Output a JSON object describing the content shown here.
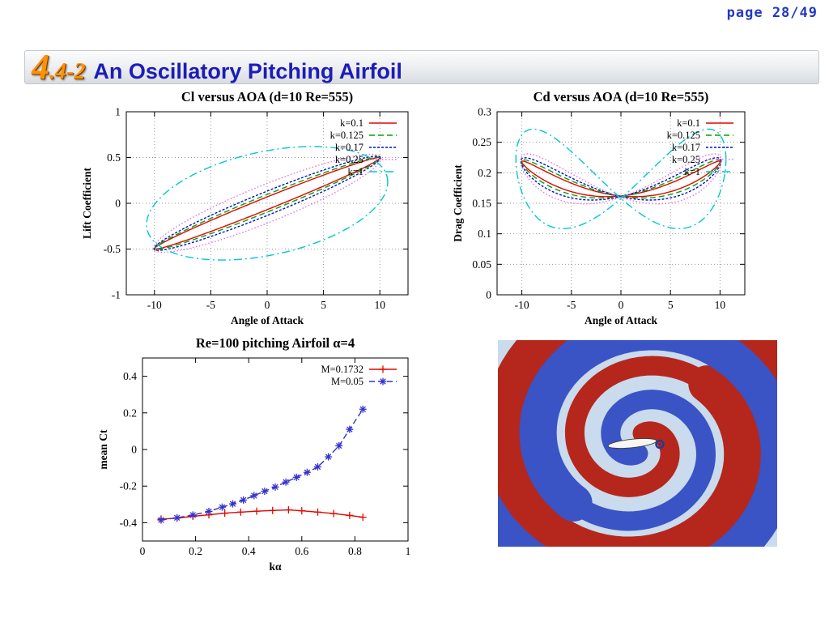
{
  "page_label": "page 28/49",
  "title_bar": {
    "section_big": "4",
    "section_rest": ".4-2",
    "title": "An Oscillatory Pitching Airfoil"
  },
  "colors": {
    "page_label_blue": "#2339c0",
    "title_navy": "#1c1cb8",
    "section_orange": "#ff9100"
  },
  "chart_data": [
    {
      "id": "cl_vs_aoa",
      "type": "line",
      "title": "Cl versus AOA (d=10 Re=555)",
      "xlabel": "Angle of Attack",
      "ylabel": "Lift Coefficient",
      "xlim": [
        -12.5,
        12.5
      ],
      "ylim": [
        -1,
        1
      ],
      "xticks": [
        -10,
        -5,
        0,
        5,
        10
      ],
      "yticks": [
        -1,
        -0.5,
        0,
        0.5,
        1
      ],
      "grid": true,
      "legend_position": "top-right",
      "note": "hysteresis loops: Cl swings -0.5..0.5 while AOA swings -10..10; loop width grows with reduced frequency k",
      "series": [
        {
          "label": "k=0.1",
          "color": "#e10600",
          "dash": "solid",
          "loop": {
            "kind": "ellipse",
            "x_amp": 10,
            "y_amp": 0.5,
            "phase_deg": 8
          }
        },
        {
          "label": "k=0.125",
          "color": "#00a400",
          "dash": "dashed",
          "loop": {
            "kind": "ellipse",
            "x_amp": 10,
            "y_amp": 0.505,
            "phase_deg": 11
          }
        },
        {
          "label": "k=0.17",
          "color": "#0013c4",
          "dash": "dense-dash",
          "loop": {
            "kind": "ellipse",
            "x_amp": 10.05,
            "y_amp": 0.515,
            "phase_deg": 15
          }
        },
        {
          "label": "k=0.25",
          "color": "#e86ce8",
          "dash": "dotted",
          "loop": {
            "kind": "ellipse",
            "x_amp": 10.1,
            "y_amp": 0.535,
            "phase_deg": 24
          }
        },
        {
          "label": "k=1",
          "color": "#00c8d2",
          "dash": "dash-dot",
          "loop": {
            "kind": "ellipse",
            "x_amp": 10.7,
            "y_amp": 0.62,
            "phase_deg": 68
          }
        }
      ]
    },
    {
      "id": "cd_vs_aoa",
      "type": "line",
      "title": "Cd versus AOA (d=10 Re=555)",
      "xlabel": "Angle of Attack",
      "ylabel": "Drag Coefficient",
      "xlim": [
        -12.5,
        12.5
      ],
      "ylim": [
        0,
        0.3
      ],
      "xticks": [
        -10,
        -5,
        0,
        5,
        10
      ],
      "yticks": [
        0,
        0.05,
        0.1,
        0.15,
        0.2,
        0.25,
        0.3
      ],
      "grid": true,
      "legend_position": "top-right",
      "note": "figure-eight loops: Cd ~0.22 at AOA=±10, branches cross near (0, 0.16); k=1 loop widest (~0.12..0.27)",
      "series": [
        {
          "label": "k=0.1",
          "color": "#e10600",
          "dash": "solid",
          "loop": {
            "kind": "fig8",
            "x_amp": 10,
            "mean": 0.19,
            "cos2": 0.028,
            "sin2": 0.008
          }
        },
        {
          "label": "k=0.125",
          "color": "#00a400",
          "dash": "dashed",
          "loop": {
            "kind": "fig8",
            "x_amp": 10.05,
            "mean": 0.19,
            "cos2": 0.0285,
            "sin2": 0.013
          }
        },
        {
          "label": "k=0.17",
          "color": "#0013c4",
          "dash": "dense-dash",
          "loop": {
            "kind": "fig8",
            "x_amp": 10.1,
            "mean": 0.19,
            "cos2": 0.029,
            "sin2": 0.019
          }
        },
        {
          "label": "k=0.25",
          "color": "#e86ce8",
          "dash": "dotted",
          "loop": {
            "kind": "fig8",
            "x_amp": 10.15,
            "mean": 0.19,
            "cos2": 0.03,
            "sin2": 0.028
          }
        },
        {
          "label": "k=1",
          "color": "#00c8d2",
          "dash": "dash-dot",
          "loop": {
            "kind": "fig8",
            "x_amp": 10.6,
            "mean": 0.19,
            "cos2": 0.032,
            "sin2": 0.075
          }
        }
      ]
    },
    {
      "id": "mean_ct",
      "type": "line",
      "title": "Re=100 pitching Airfoil α=4",
      "xlabel": "kα",
      "ylabel": "mean Ct",
      "xlim": [
        0,
        1
      ],
      "ylim": [
        -0.5,
        0.5
      ],
      "xticks": [
        0,
        0.2,
        0.4,
        0.6,
        0.8,
        1
      ],
      "yticks": [
        -0.4,
        -0.2,
        0,
        0.2,
        0.4
      ],
      "grid": false,
      "legend_position": "top-right",
      "series": [
        {
          "label": "M=0.1732",
          "color": "#e10600",
          "dash": "solid",
          "marker": "plus",
          "points": [
            [
              0.07,
              -0.38
            ],
            [
              0.13,
              -0.375
            ],
            [
              0.19,
              -0.365
            ],
            [
              0.25,
              -0.357
            ],
            [
              0.31,
              -0.348
            ],
            [
              0.37,
              -0.342
            ],
            [
              0.43,
              -0.337
            ],
            [
              0.49,
              -0.333
            ],
            [
              0.55,
              -0.33
            ],
            [
              0.6,
              -0.335
            ],
            [
              0.66,
              -0.342
            ],
            [
              0.72,
              -0.35
            ],
            [
              0.78,
              -0.36
            ],
            [
              0.83,
              -0.37
            ]
          ]
        },
        {
          "label": "M=0.05",
          "color": "#3333cc",
          "dash": "dashed",
          "marker": "asterisk",
          "points": [
            [
              0.07,
              -0.385
            ],
            [
              0.13,
              -0.373
            ],
            [
              0.19,
              -0.358
            ],
            [
              0.25,
              -0.338
            ],
            [
              0.3,
              -0.315
            ],
            [
              0.34,
              -0.297
            ],
            [
              0.38,
              -0.276
            ],
            [
              0.42,
              -0.252
            ],
            [
              0.46,
              -0.228
            ],
            [
              0.5,
              -0.205
            ],
            [
              0.54,
              -0.178
            ],
            [
              0.58,
              -0.152
            ],
            [
              0.62,
              -0.125
            ],
            [
              0.66,
              -0.095
            ],
            [
              0.7,
              -0.04
            ],
            [
              0.74,
              0.02
            ],
            [
              0.78,
              0.11
            ],
            [
              0.83,
              0.22
            ]
          ]
        }
      ]
    }
  ],
  "flow_field": {
    "description": "acoustic pressure spiral wave field radiated by the pitching airfoil",
    "colors": {
      "background": "#c9dbec",
      "positive": "#b5271d",
      "negative": "#3a53c5",
      "airfoil": "#f8f6f1",
      "airfoil_outline": "#3c3c3c",
      "swirl": "#27368f"
    }
  }
}
